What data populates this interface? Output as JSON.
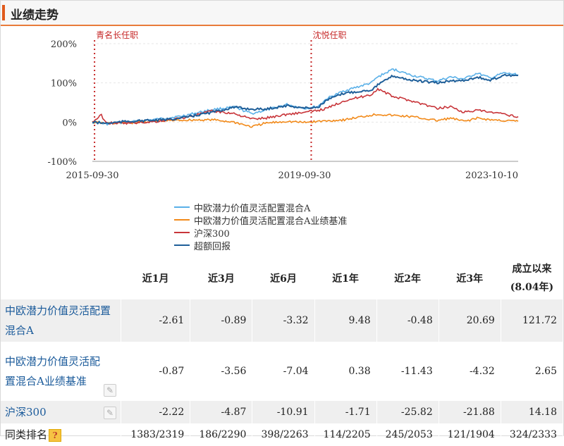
{
  "header": {
    "title": "业绩走势"
  },
  "chart_data": {
    "type": "line",
    "x_ticks": [
      "2015-09-30",
      "2019-09-30",
      "2023-10-10"
    ],
    "x_range": [
      "2015-09-30",
      "2023-10-10"
    ],
    "y_ticks": [
      "200%",
      "100%",
      "0%",
      "-100%"
    ],
    "ylim": [
      -100,
      200
    ],
    "grid": true,
    "legend_position": "bottom",
    "annotations": [
      {
        "date": "2015-10-15",
        "label": "青名长任职"
      },
      {
        "date": "2019-11-15",
        "label": "沈悦任职"
      }
    ],
    "series": [
      {
        "name": "中欧潜力价值灵活配置混合A",
        "color": "#5ab0e8",
        "x": [
          "2015-09-30",
          "2016-01-01",
          "2016-06-01",
          "2017-01-01",
          "2017-06-01",
          "2018-01-01",
          "2018-06-01",
          "2018-10-01",
          "2019-01-01",
          "2019-06-01",
          "2019-09-30",
          "2020-01-01",
          "2020-03-01",
          "2020-07-01",
          "2021-01-01",
          "2021-02-15",
          "2021-06-01",
          "2021-10-01",
          "2022-04-01",
          "2022-07-01",
          "2022-10-01",
          "2023-01-01",
          "2023-04-01",
          "2023-07-01",
          "2023-10-10"
        ],
        "y": [
          0,
          -5,
          0,
          8,
          15,
          32,
          38,
          22,
          30,
          45,
          35,
          40,
          60,
          80,
          100,
          115,
          135,
          120,
          105,
          115,
          110,
          125,
          112,
          125,
          121
        ]
      },
      {
        "name": "中欧潜力价值灵活配置混合A业绩基准",
        "color": "#f28a1a",
        "x": [
          "2015-09-30",
          "2016-01-01",
          "2016-06-01",
          "2017-01-01",
          "2017-06-01",
          "2018-01-01",
          "2018-06-01",
          "2018-10-01",
          "2019-01-01",
          "2019-06-01",
          "2019-09-30",
          "2020-01-01",
          "2020-03-01",
          "2020-07-01",
          "2021-01-01",
          "2021-02-15",
          "2021-06-01",
          "2021-10-01",
          "2022-04-01",
          "2022-07-01",
          "2022-10-01",
          "2023-01-01",
          "2023-04-01",
          "2023-07-01",
          "2023-10-10"
        ],
        "y": [
          0,
          -3,
          -2,
          3,
          5,
          6,
          0,
          -12,
          -3,
          2,
          -1,
          2,
          3,
          6,
          18,
          20,
          17,
          14,
          4,
          10,
          2,
          10,
          6,
          4,
          2
        ]
      },
      {
        "name": "沪深300",
        "color": "#c8353a",
        "x": [
          "2015-09-30",
          "2015-12-01",
          "2016-01-01",
          "2016-06-01",
          "2017-01-01",
          "2017-06-01",
          "2018-01-01",
          "2018-06-01",
          "2018-10-01",
          "2019-01-01",
          "2019-06-01",
          "2019-09-30",
          "2020-01-01",
          "2020-03-01",
          "2020-07-01",
          "2021-01-01",
          "2021-02-15",
          "2021-06-01",
          "2021-10-01",
          "2022-04-01",
          "2022-07-01",
          "2022-10-01",
          "2023-01-01",
          "2023-04-01",
          "2023-07-01",
          "2023-10-10"
        ],
        "y": [
          0,
          18,
          -2,
          -3,
          2,
          10,
          28,
          22,
          8,
          10,
          20,
          25,
          30,
          35,
          55,
          70,
          85,
          65,
          55,
          35,
          40,
          25,
          30,
          25,
          20,
          14
        ]
      },
      {
        "name": "超额回报",
        "color": "#1f5f99",
        "x": [
          "2015-09-30",
          "2016-01-01",
          "2016-06-01",
          "2017-01-01",
          "2017-06-01",
          "2018-01-01",
          "2018-06-01",
          "2018-10-01",
          "2019-01-01",
          "2019-06-01",
          "2019-09-30",
          "2020-01-01",
          "2020-03-01",
          "2020-07-01",
          "2021-01-01",
          "2021-02-15",
          "2021-06-01",
          "2021-10-01",
          "2022-04-01",
          "2022-07-01",
          "2022-10-01",
          "2023-01-01",
          "2023-04-01",
          "2023-07-01",
          "2023-10-10"
        ],
        "y": [
          0,
          -3,
          2,
          5,
          10,
          25,
          38,
          33,
          33,
          42,
          36,
          38,
          56,
          74,
          82,
          95,
          118,
          107,
          100,
          105,
          106,
          115,
          106,
          120,
          119
        ]
      }
    ]
  },
  "table": {
    "headers": [
      "近1月",
      "近3月",
      "近6月",
      "近1年",
      "近2年",
      "近3年"
    ],
    "header_last_line1": "成立以来",
    "header_last_line2": "(8.04年)",
    "rows": [
      {
        "name": "中欧潜力价值灵活配置混合A",
        "values": [
          "-2.61",
          "-0.89",
          "-3.32",
          "9.48",
          "-0.48",
          "20.69",
          "121.72"
        ]
      },
      {
        "name": "中欧潜力价值灵活配置混合A业绩基准",
        "values": [
          "-0.87",
          "-3.56",
          "-7.04",
          "0.38",
          "-11.43",
          "-4.32",
          "2.65"
        ]
      },
      {
        "name": "沪深300",
        "values": [
          "-2.22",
          "-4.87",
          "-10.91",
          "-1.71",
          "-25.82",
          "-21.88",
          "14.18"
        ]
      }
    ],
    "rank_label": "同类排名",
    "rank_values": [
      "1383/2319",
      "186/2290",
      "398/2263",
      "114/2205",
      "245/2053",
      "121/1904",
      "324/2333"
    ]
  },
  "icons": {
    "edit": "edit-icon",
    "help": "help-icon"
  }
}
